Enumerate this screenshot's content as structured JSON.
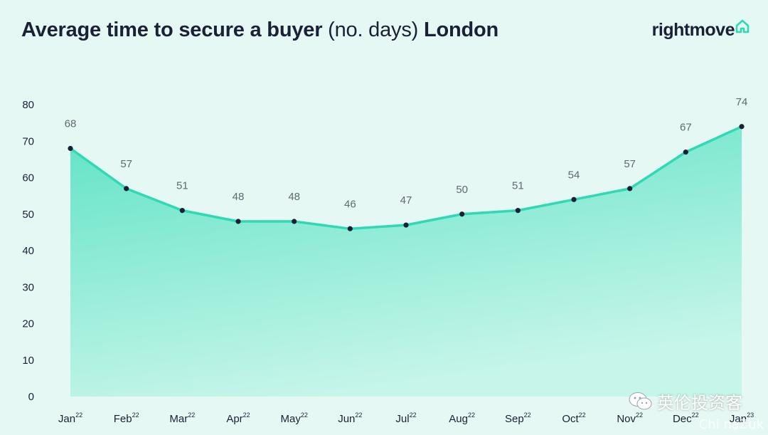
{
  "header": {
    "title_bold": "Average time to secure a buyer",
    "title_light": "(no. days)",
    "title_region": "London"
  },
  "brand": {
    "name": "rightmove",
    "icon": "house-outline-icon",
    "accent": "#2ed9b4"
  },
  "watermark": {
    "text": "英伦投资客",
    "sub": "Chi naZuk",
    "icon": "wechat-icon"
  },
  "chart_data": {
    "type": "area",
    "categories": [
      {
        "month": "Jan",
        "year": "22"
      },
      {
        "month": "Feb",
        "year": "22"
      },
      {
        "month": "Mar",
        "year": "22"
      },
      {
        "month": "Apr",
        "year": "22"
      },
      {
        "month": "May",
        "year": "22"
      },
      {
        "month": "Jun",
        "year": "22"
      },
      {
        "month": "Jul",
        "year": "22"
      },
      {
        "month": "Aug",
        "year": "22"
      },
      {
        "month": "Sep",
        "year": "22"
      },
      {
        "month": "Oct",
        "year": "22"
      },
      {
        "month": "Nov",
        "year": "22"
      },
      {
        "month": "Dec",
        "year": "22"
      },
      {
        "month": "Jan",
        "year": "23"
      }
    ],
    "values": [
      68,
      57,
      51,
      48,
      48,
      46,
      47,
      50,
      51,
      54,
      57,
      67,
      74
    ],
    "ylim": [
      0,
      80
    ],
    "yticks": [
      0,
      10,
      20,
      30,
      40,
      50,
      60,
      70,
      80
    ],
    "grid": false,
    "line_color": "#2ed9b4",
    "fill_color_top": "#5fe3c4",
    "fill_color_bottom": "#c6f5ea",
    "point_color": "#1a2036"
  }
}
